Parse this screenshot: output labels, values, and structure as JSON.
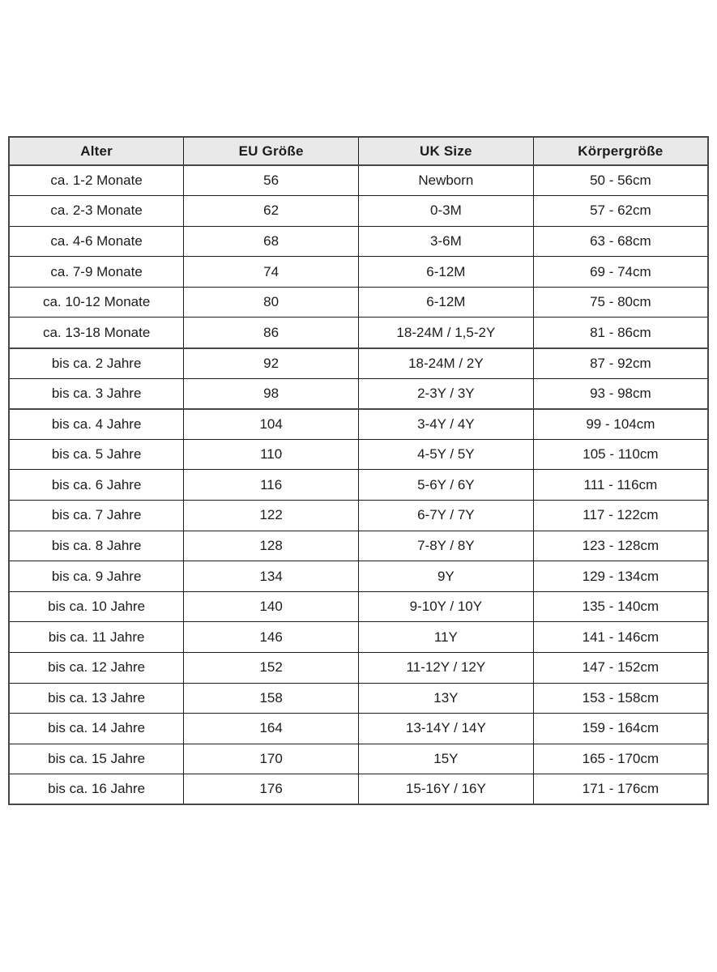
{
  "colors": {
    "header_bg": "#e9e9e9",
    "border_thin": "#1c1c1c",
    "border_thick": "#474747",
    "text": "#1c1c1c",
    "page_bg": "#ffffff"
  },
  "table": {
    "headers": [
      "Alter",
      "EU Größe",
      "UK Size",
      "Körpergröße"
    ],
    "rows": [
      [
        "ca. 1-2 Monate",
        "56",
        "Newborn",
        "50 - 56cm"
      ],
      [
        "ca. 2-3 Monate",
        "62",
        "0-3M",
        "57 - 62cm"
      ],
      [
        "ca. 4-6 Monate",
        "68",
        "3-6M",
        "63 - 68cm"
      ],
      [
        "ca. 7-9 Monate",
        "74",
        "6-12M",
        "69 - 74cm"
      ],
      [
        "ca. 10-12 Monate",
        "80",
        "6-12M",
        "75 - 80cm"
      ],
      [
        "ca. 13-18 Monate",
        "86",
        "18-24M / 1,5-2Y",
        "81 - 86cm"
      ],
      [
        "bis ca. 2 Jahre",
        "92",
        "18-24M / 2Y",
        "87 - 92cm"
      ],
      [
        "bis ca. 3 Jahre",
        "98",
        "2-3Y / 3Y",
        "93 - 98cm"
      ],
      [
        "bis ca. 4 Jahre",
        "104",
        "3-4Y / 4Y",
        "99 - 104cm"
      ],
      [
        "bis ca. 5 Jahre",
        "110",
        "4-5Y / 5Y",
        "105 - 110cm"
      ],
      [
        "bis ca. 6 Jahre",
        "116",
        "5-6Y / 6Y",
        "111 - 116cm"
      ],
      [
        "bis ca. 7 Jahre",
        "122",
        "6-7Y / 7Y",
        "117 - 122cm"
      ],
      [
        "bis ca. 8 Jahre",
        "128",
        "7-8Y / 8Y",
        "123 - 128cm"
      ],
      [
        "bis ca. 9 Jahre",
        "134",
        "9Y",
        "129 - 134cm"
      ],
      [
        "bis ca. 10 Jahre",
        "140",
        "9-10Y / 10Y",
        "135 - 140cm"
      ],
      [
        "bis ca. 11 Jahre",
        "146",
        "11Y",
        "141 - 146cm"
      ],
      [
        "bis ca. 12 Jahre",
        "152",
        "11-12Y / 12Y",
        "147 - 152cm"
      ],
      [
        "bis ca. 13 Jahre",
        "158",
        "13Y",
        "153 - 158cm"
      ],
      [
        "bis ca. 14 Jahre",
        "164",
        "13-14Y / 14Y",
        "159 - 164cm"
      ],
      [
        "bis ca. 15 Jahre",
        "170",
        "15Y",
        "165 - 170cm"
      ],
      [
        "bis ca. 16 Jahre",
        "176",
        "15-16Y / 16Y",
        "171 - 176cm"
      ]
    ],
    "thick_divider_after_rows": [
      6,
      8
    ],
    "column_names": [
      "age",
      "eu-size",
      "uk-size",
      "body-height"
    ]
  }
}
